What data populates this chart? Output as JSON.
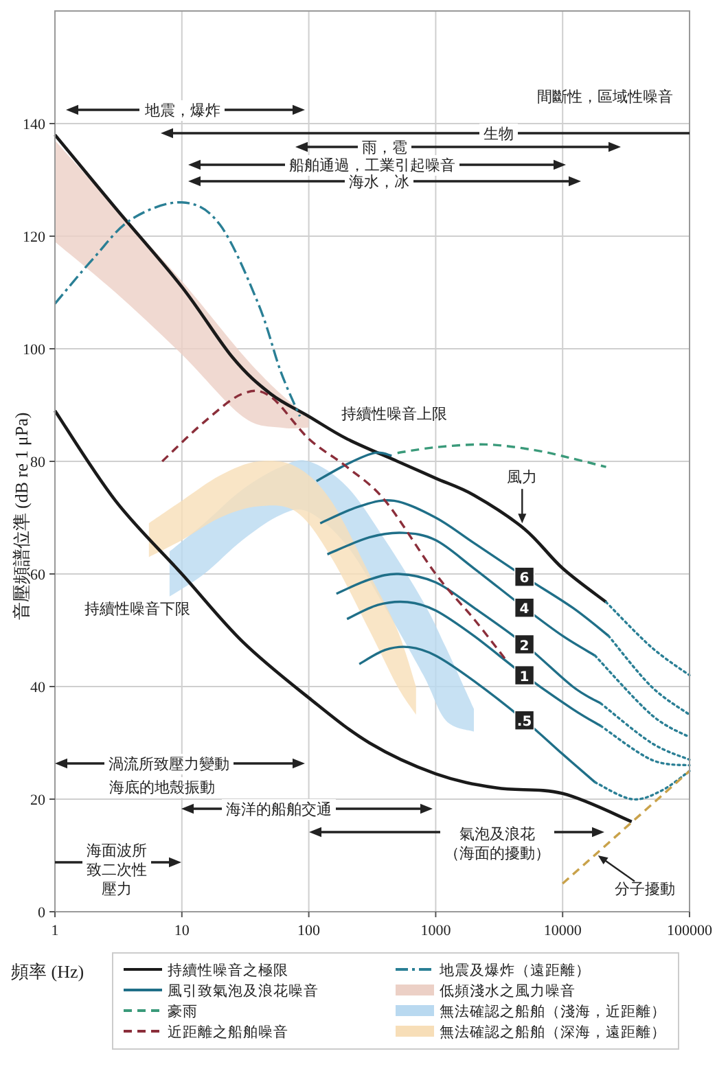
{
  "chart_data": {
    "type": "line",
    "xlabel": "頻率 (Hz)",
    "ylabel": "音壓頻譜位準 (dB re 1 μPa)",
    "log": "x",
    "xlim": [
      1,
      100000
    ],
    "xticks": [
      1,
      10,
      100,
      1000,
      10000,
      100000
    ],
    "ylim": [
      0,
      160
    ],
    "yticks": [
      0,
      20,
      40,
      60,
      80,
      100,
      120,
      140
    ],
    "grid": true,
    "legend": "bottom",
    "series": [
      {
        "type": "line",
        "name": "持續性噪音之極限",
        "color": "#1a1a1a",
        "line_style": "solid",
        "x": [
          1,
          3,
          10,
          25,
          50,
          100,
          200,
          500,
          1000,
          2000,
          5000,
          10000,
          22000
        ],
        "values": [
          138,
          125,
          111,
          98.5,
          92,
          88,
          84,
          80,
          77,
          74,
          68,
          61,
          55
        ]
      },
      {
        "type": "line",
        "color": "#1a1a1a",
        "line_style": "solid",
        "x": [
          1,
          3,
          10,
          30,
          100,
          300,
          1000,
          3000,
          10000,
          35000
        ],
        "values": [
          89,
          73,
          60,
          48,
          38,
          30,
          24.5,
          22,
          21,
          16
        ]
      },
      {
        "type": "line",
        "name": "風引致氣泡及浪花噪音",
        "color": "#1f6f88",
        "line_style": "solid",
        "x": [
          115,
          200,
          330,
          450
        ],
        "values": [
          76.5,
          79.5,
          81.5,
          81
        ]
      },
      {
        "type": "line",
        "color": "#1f6f88",
        "line_style": "solid",
        "x": [
          123,
          250,
          470,
          1000,
          2000,
          5000,
          12000,
          23000
        ],
        "values": [
          69,
          72,
          73,
          70,
          65.5,
          59.5,
          54,
          49
        ]
      },
      {
        "type": "line",
        "color": "#1f6f88",
        "line_style": "solid",
        "x": [
          140,
          300,
          550,
          1000,
          2000,
          5000,
          10000,
          18000
        ],
        "values": [
          63.5,
          66.5,
          67.3,
          66,
          61,
          54,
          49,
          45.5
        ]
      },
      {
        "type": "line",
        "color": "#1f6f88",
        "line_style": "solid",
        "x": [
          165,
          300,
          510,
          1000,
          2000,
          5000,
          12000,
          20000
        ],
        "values": [
          56.5,
          59,
          60,
          58.5,
          54,
          47.5,
          40,
          37
        ]
      },
      {
        "type": "line",
        "color": "#1f6f88",
        "line_style": "solid",
        "x": [
          200,
          350,
          600,
          1000,
          2000,
          5000,
          12000,
          20000
        ],
        "values": [
          52,
          54.5,
          55,
          53.5,
          49,
          42,
          36,
          33
        ]
      },
      {
        "type": "line",
        "color": "#1f6f88",
        "line_style": "solid",
        "x": [
          250,
          400,
          620,
          1000,
          2000,
          5000,
          10000,
          18000
        ],
        "values": [
          44,
          46.5,
          47,
          45.5,
          41,
          34,
          28,
          23
        ]
      },
      {
        "type": "line",
        "color": "#2a7f95",
        "line_style": "dotted",
        "x": [
          22000,
          50000,
          100000
        ],
        "values": [
          55,
          47,
          42
        ]
      },
      {
        "type": "line",
        "color": "#2a7f95",
        "line_style": "dotted",
        "x": [
          23000,
          50000,
          100000
        ],
        "values": [
          49,
          40,
          35
        ]
      },
      {
        "type": "line",
        "color": "#2a7f95",
        "line_style": "dotted",
        "x": [
          18000,
          50000,
          100000
        ],
        "values": [
          45.5,
          35,
          31
        ]
      },
      {
        "type": "line",
        "color": "#2a7f95",
        "line_style": "dotted",
        "x": [
          20000,
          50000,
          100000
        ],
        "values": [
          37,
          30,
          27
        ]
      },
      {
        "type": "line",
        "color": "#2a7f95",
        "line_style": "dotted",
        "x": [
          20000,
          50000,
          100000
        ],
        "values": [
          33,
          27,
          26
        ]
      },
      {
        "type": "line",
        "color": "#2a7f95",
        "line_style": "dotted",
        "x": [
          18000,
          35000,
          60000,
          100000
        ],
        "values": [
          23,
          20,
          21.5,
          25
        ]
      },
      {
        "type": "line",
        "name": "豪雨",
        "color": "#3a9a7a",
        "line_style": "dashed",
        "x": [
          500,
          1000,
          2500,
          6000,
          12000,
          22000
        ],
        "values": [
          81.5,
          82.5,
          83,
          82,
          80.5,
          79
        ]
      },
      {
        "type": "line",
        "name": "近距離之船舶噪音",
        "color": "#8b2e3a",
        "line_style": "dashed",
        "x": [
          7,
          15,
          30,
          50,
          100,
          200,
          400,
          1000,
          2000,
          3500
        ],
        "values": [
          80,
          87,
          92,
          91.5,
          84,
          79,
          73,
          60,
          52,
          45
        ]
      },
      {
        "type": "line",
        "name": "地震及爆炸（遠距離）",
        "color": "#2a7f95",
        "line_style": "dashdot",
        "x": [
          1,
          2,
          4,
          10,
          20,
          40,
          60,
          85
        ],
        "values": [
          108,
          116,
          123,
          126,
          122,
          108,
          96,
          88
        ]
      },
      {
        "type": "line",
        "name": "低頻淺水之風力噪音",
        "color": "#ecd0c6",
        "x": [
          1,
          3,
          10,
          30,
          60,
          100
        ],
        "values": [
          null,
          null,
          null,
          null,
          null,
          null
        ],
        "upper": [
          137,
          125,
          112,
          99,
          92,
          88
        ],
        "lower": [
          119,
          110,
          99,
          88,
          86,
          86
        ]
      },
      {
        "type": "line",
        "name": "無法確認之船舶（淺海，近距離）",
        "color": "#b9d9f0",
        "x": [
          8,
          15,
          30,
          60,
          100,
          200,
          400,
          800,
          1200,
          2000
        ],
        "values": [
          null,
          null,
          null,
          null,
          null,
          null,
          null,
          null,
          null,
          null
        ],
        "upper": [
          64,
          69,
          75,
          79,
          80,
          75.5,
          66,
          55,
          47,
          36
        ],
        "lower": [
          56,
          60,
          66,
          70.5,
          71,
          65,
          54,
          42,
          34,
          32
        ]
      },
      {
        "type": "line",
        "name": "無法確認之船舶（深海，遠距離）",
        "color": "#f7deb8",
        "x": [
          5.5,
          10,
          20,
          40,
          80,
          150,
          300,
          500,
          700
        ],
        "values": [
          null,
          null,
          null,
          null,
          null,
          null,
          null,
          null,
          null
        ],
        "upper": [
          69,
          73,
          77.5,
          80,
          79,
          73,
          60,
          50,
          40
        ],
        "lower": [
          63,
          66,
          70,
          72,
          71,
          63,
          50,
          40,
          35
        ]
      },
      {
        "type": "line",
        "color": "#c9a24a",
        "line_style": "dashed",
        "x": [
          10000,
          100000
        ],
        "values": [
          5,
          25
        ]
      }
    ],
    "annotations": [
      "間斷性，區域性噪音",
      "地震，爆炸",
      "生物",
      "雨，雹",
      "船舶通過，工業引起噪音",
      "海水，冰",
      "持續性噪音上限",
      "持續性噪音下限",
      {
        "text": "風力",
        "x": 4800,
        "y": 69
      },
      "渦流所致壓力變動",
      "海底的地殼振動",
      "海洋的船舶交通",
      "氣泡及浪花（海面的擾動）",
      "海面波所致二次性壓力",
      {
        "text": "分子擾動",
        "x": 19000,
        "y": 10
      },
      {
        "text": "6",
        "x": 5000,
        "y": 59.5
      },
      {
        "text": "4",
        "x": 5000,
        "y": 54
      },
      {
        "text": "2",
        "x": 5000,
        "y": 47.5
      },
      {
        "text": "1",
        "x": 5000,
        "y": 42
      },
      {
        "text": ".5",
        "x": 5000,
        "y": 34
      }
    ]
  }
}
